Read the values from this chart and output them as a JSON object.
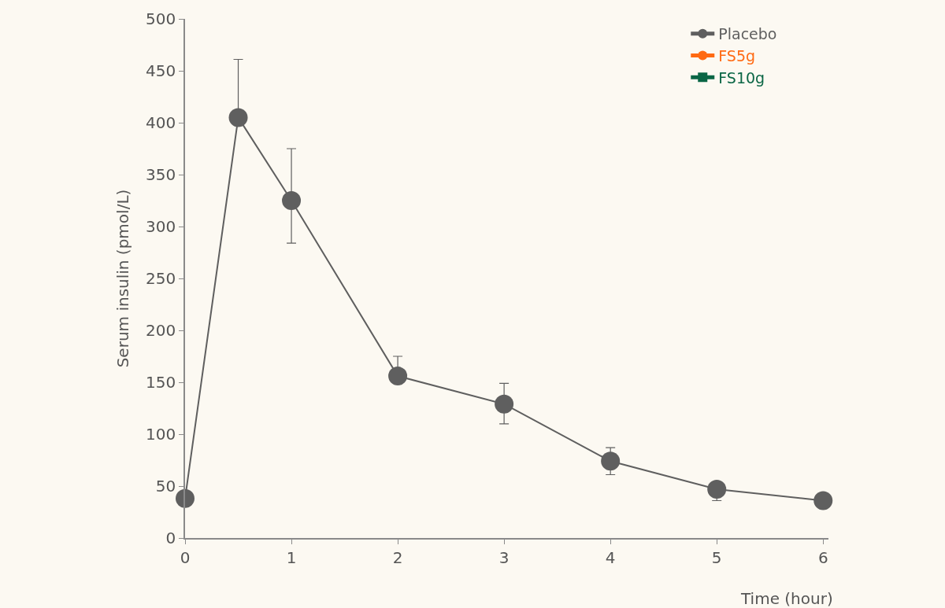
{
  "chart_data": {
    "type": "line",
    "xlabel": "Time (hour)",
    "ylabel": "Serum insulin (pmol/L)",
    "x": [
      0,
      0.5,
      1,
      2,
      3,
      4,
      5,
      6
    ],
    "series": [
      {
        "name": "Placebo",
        "color": "#5f5f5f",
        "marker": "circle",
        "values": [
          38,
          405,
          325,
          156,
          129,
          74,
          47,
          36
        ],
        "errors": [
          null,
          [
            405,
            461
          ],
          [
            284,
            375
          ],
          [
            156,
            175
          ],
          [
            110,
            149
          ],
          [
            61,
            87
          ],
          [
            36,
            47
          ],
          null
        ]
      },
      {
        "name": "FS5g",
        "color": "#ff6a13",
        "marker": "circle",
        "values": [
          null,
          null,
          null,
          null,
          null,
          null,
          null,
          null
        ]
      },
      {
        "name": "FS10g",
        "color": "#0a6645",
        "marker": "square",
        "values": [
          null,
          null,
          null,
          null,
          null,
          null,
          null,
          null
        ]
      }
    ],
    "xlim": [
      0,
      6.05
    ],
    "xticks": [
      0,
      1,
      2,
      3,
      4,
      5,
      6
    ],
    "ylim": [
      0,
      500
    ],
    "yticks": [
      0,
      50,
      100,
      150,
      200,
      250,
      300,
      350,
      400,
      450,
      500
    ],
    "grid": false,
    "legend": "top right",
    "line_style": "solid"
  }
}
